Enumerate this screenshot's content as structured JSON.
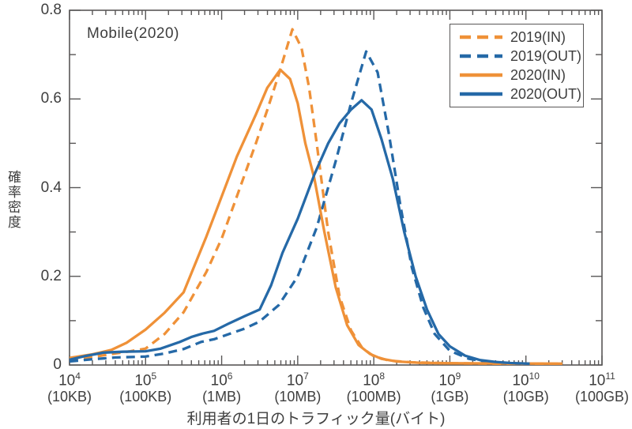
{
  "figure": {
    "annotation": "Mobile(2020)",
    "colors": {
      "orange": "#EF9138",
      "blue": "#2569A7",
      "axis": "#595757",
      "text": "#3E3E3E"
    }
  },
  "chart_data": {
    "type": "line",
    "title": "Mobile(2020)",
    "xlabel": "利用者の1日のトラフィック量(バイト)",
    "ylabel": "確率密度",
    "x_scale": "log10",
    "xlim_log10": [
      4,
      11
    ],
    "ylim": [
      0,
      0.8
    ],
    "grid": false,
    "legend_position": "top-right",
    "x_ticks": [
      {
        "exp": "4",
        "byte_label": "(10KB)"
      },
      {
        "exp": "5",
        "byte_label": "(100KB)"
      },
      {
        "exp": "6",
        "byte_label": "(1MB)"
      },
      {
        "exp": "7",
        "byte_label": "(10MB)"
      },
      {
        "exp": "8",
        "byte_label": "(100MB)"
      },
      {
        "exp": "9",
        "byte_label": "(1GB)"
      },
      {
        "exp": "10",
        "byte_label": "(10GB)"
      },
      {
        "exp": "11",
        "byte_label": "(100GB)"
      }
    ],
    "y_major_ticks": [
      0,
      0.2,
      0.4,
      0.6,
      0.8
    ],
    "y_minor_step": 0.1,
    "series": [
      {
        "name": "2019(IN)",
        "color": "orange",
        "style": "dashed",
        "points": [
          [
            4.0,
            0.013
          ],
          [
            4.3,
            0.018
          ],
          [
            4.6,
            0.026
          ],
          [
            4.8,
            0.031
          ],
          [
            5.0,
            0.037
          ],
          [
            5.25,
            0.07
          ],
          [
            5.5,
            0.119
          ],
          [
            5.8,
            0.21
          ],
          [
            6.0,
            0.285
          ],
          [
            6.2,
            0.38
          ],
          [
            6.45,
            0.5
          ],
          [
            6.6,
            0.575
          ],
          [
            6.75,
            0.655
          ],
          [
            6.93,
            0.757
          ],
          [
            7.05,
            0.715
          ],
          [
            7.15,
            0.625
          ],
          [
            7.25,
            0.5
          ],
          [
            7.4,
            0.3
          ],
          [
            7.55,
            0.155
          ],
          [
            7.7,
            0.078
          ],
          [
            7.85,
            0.038
          ],
          [
            8.0,
            0.02
          ],
          [
            8.2,
            0.01
          ],
          [
            8.5,
            0.006
          ],
          [
            9.0,
            0.004
          ],
          [
            9.6,
            0.003
          ],
          [
            10.45,
            0.003
          ]
        ]
      },
      {
        "name": "2019(OUT)",
        "color": "blue",
        "style": "dashed",
        "points": [
          [
            4.0,
            0.008
          ],
          [
            4.3,
            0.013
          ],
          [
            4.6,
            0.017
          ],
          [
            5.0,
            0.019
          ],
          [
            5.25,
            0.026
          ],
          [
            5.5,
            0.036
          ],
          [
            5.73,
            0.052
          ],
          [
            5.9,
            0.058
          ],
          [
            6.1,
            0.07
          ],
          [
            6.3,
            0.082
          ],
          [
            6.5,
            0.098
          ],
          [
            6.75,
            0.135
          ],
          [
            7.0,
            0.2
          ],
          [
            7.25,
            0.31
          ],
          [
            7.5,
            0.46
          ],
          [
            7.7,
            0.59
          ],
          [
            7.9,
            0.707
          ],
          [
            8.05,
            0.66
          ],
          [
            8.2,
            0.52
          ],
          [
            8.35,
            0.36
          ],
          [
            8.5,
            0.22
          ],
          [
            8.65,
            0.13
          ],
          [
            8.8,
            0.07
          ],
          [
            9.0,
            0.032
          ],
          [
            9.25,
            0.014
          ],
          [
            9.5,
            0.007
          ],
          [
            9.75,
            0.004
          ],
          [
            10.05,
            0.003
          ]
        ]
      },
      {
        "name": "2020(IN)",
        "color": "orange",
        "style": "solid",
        "points": [
          [
            4.0,
            0.016
          ],
          [
            4.3,
            0.024
          ],
          [
            4.55,
            0.034
          ],
          [
            4.75,
            0.05
          ],
          [
            5.0,
            0.08
          ],
          [
            5.25,
            0.118
          ],
          [
            5.5,
            0.164
          ],
          [
            5.8,
            0.29
          ],
          [
            6.0,
            0.38
          ],
          [
            6.2,
            0.47
          ],
          [
            6.45,
            0.565
          ],
          [
            6.6,
            0.625
          ],
          [
            6.77,
            0.666
          ],
          [
            6.9,
            0.645
          ],
          [
            7.0,
            0.59
          ],
          [
            7.1,
            0.5
          ],
          [
            7.22,
            0.42
          ],
          [
            7.35,
            0.3
          ],
          [
            7.5,
            0.175
          ],
          [
            7.65,
            0.09
          ],
          [
            7.8,
            0.045
          ],
          [
            7.95,
            0.025
          ],
          [
            8.1,
            0.014
          ],
          [
            8.3,
            0.008
          ],
          [
            8.6,
            0.005
          ],
          [
            9.0,
            0.004
          ],
          [
            9.6,
            0.0035
          ],
          [
            10.48,
            0.003
          ]
        ]
      },
      {
        "name": "2020(OUT)",
        "color": "blue",
        "style": "solid",
        "points": [
          [
            4.0,
            0.012
          ],
          [
            4.2,
            0.02
          ],
          [
            4.45,
            0.028
          ],
          [
            4.7,
            0.03
          ],
          [
            5.0,
            0.031
          ],
          [
            5.2,
            0.037
          ],
          [
            5.45,
            0.052
          ],
          [
            5.6,
            0.063
          ],
          [
            5.75,
            0.071
          ],
          [
            5.9,
            0.077
          ],
          [
            6.1,
            0.094
          ],
          [
            6.3,
            0.11
          ],
          [
            6.5,
            0.125
          ],
          [
            6.65,
            0.18
          ],
          [
            6.8,
            0.253
          ],
          [
            7.0,
            0.33
          ],
          [
            7.22,
            0.43
          ],
          [
            7.4,
            0.5
          ],
          [
            7.55,
            0.545
          ],
          [
            7.7,
            0.576
          ],
          [
            7.84,
            0.597
          ],
          [
            7.97,
            0.576
          ],
          [
            8.1,
            0.51
          ],
          [
            8.25,
            0.42
          ],
          [
            8.4,
            0.3
          ],
          [
            8.55,
            0.2
          ],
          [
            8.7,
            0.125
          ],
          [
            8.85,
            0.07
          ],
          [
            9.0,
            0.042
          ],
          [
            9.2,
            0.021
          ],
          [
            9.4,
            0.011
          ],
          [
            9.6,
            0.007
          ],
          [
            9.8,
            0.0045
          ],
          [
            10.05,
            0.003
          ]
        ]
      }
    ]
  }
}
